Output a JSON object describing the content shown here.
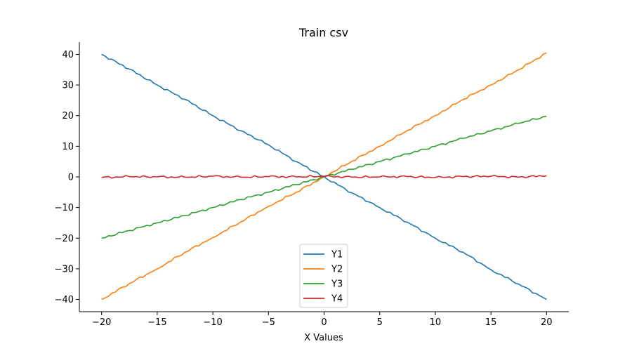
{
  "chart_data": {
    "type": "line",
    "title": "Train csv",
    "xlabel": "X Values",
    "ylabel": "",
    "xlim": [
      -22,
      22
    ],
    "ylim": [
      -44,
      44
    ],
    "xticks": [
      -20,
      -15,
      -10,
      -5,
      0,
      5,
      10,
      15,
      20
    ],
    "yticks": [
      -40,
      -30,
      -20,
      -10,
      0,
      10,
      20,
      30,
      40
    ],
    "xtick_labels": [
      "−20",
      "−15",
      "−10",
      "−5",
      "0",
      "5",
      "10",
      "15",
      "20"
    ],
    "ytick_labels": [
      "−40",
      "−30",
      "−20",
      "−10",
      "0",
      "10",
      "20",
      "30",
      "40"
    ],
    "grid": false,
    "legend_position": "lower-center",
    "x": [
      -20,
      -17.5,
      -15,
      -12.5,
      -10,
      -7.5,
      -5,
      -2.5,
      0,
      2.5,
      5,
      7.5,
      10,
      12.5,
      15,
      17.5,
      20
    ],
    "series": [
      {
        "name": "Y1",
        "color": "#1f77b4",
        "values": [
          40,
          35.2,
          30,
          25.3,
          20,
          15.1,
          10.5,
          5,
          0,
          -5.2,
          -10,
          -14.8,
          -20,
          -24.6,
          -30.3,
          -35,
          -40
        ]
      },
      {
        "name": "Y2",
        "color": "#ff7f0e",
        "values": [
          -40,
          -34.8,
          -30,
          -24.6,
          -19.8,
          -14.7,
          -9.6,
          -5,
          0,
          5.1,
          10,
          15.2,
          20,
          25.3,
          30,
          35,
          40.5
        ]
      },
      {
        "name": "Y3",
        "color": "#2ca02c",
        "values": [
          -20,
          -17.5,
          -15,
          -12.6,
          -10,
          -7.4,
          -5,
          -2.5,
          0,
          2.5,
          5,
          7.5,
          10,
          12.6,
          15,
          17.5,
          19.8
        ]
      },
      {
        "name": "Y4",
        "color": "#d62728",
        "values": [
          -0.2,
          0.1,
          0,
          -0.1,
          0.2,
          -0.1,
          0.1,
          0,
          0.2,
          -0.1,
          0,
          0.1,
          -0.2,
          0.1,
          0.2,
          -0.1,
          0.4
        ]
      }
    ]
  }
}
